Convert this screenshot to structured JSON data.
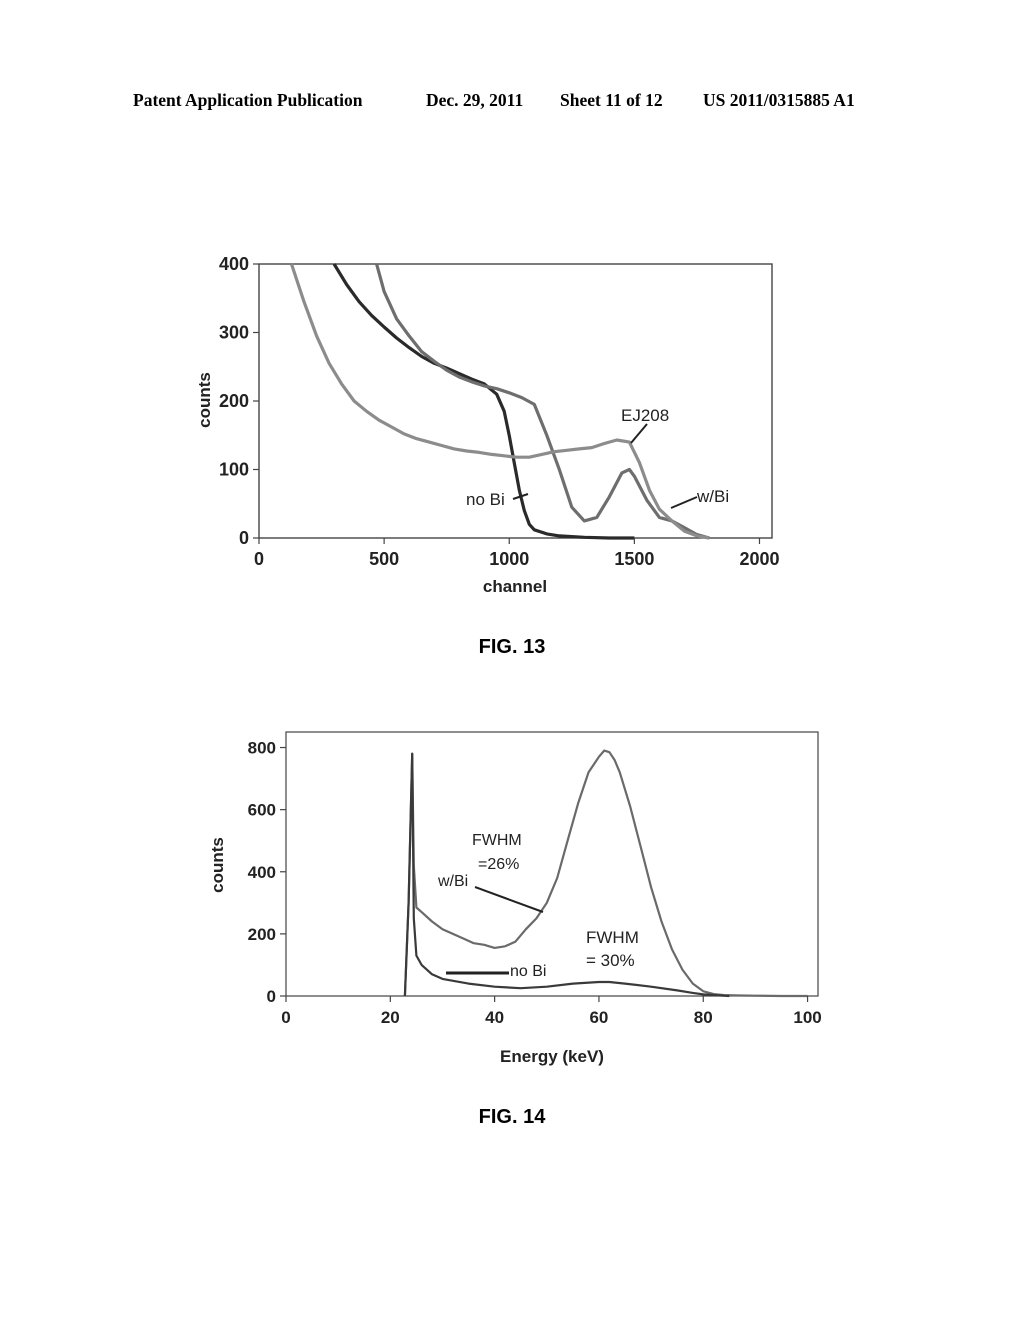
{
  "header": {
    "publication": "Patent Application Publication",
    "date": "Dec. 29, 2011",
    "sheet": "Sheet 11 of 12",
    "number": "US 2011/0315885 A1"
  },
  "figures": {
    "fig13_caption": "FIG. 13",
    "fig14_caption": "FIG. 14"
  },
  "chart_data": [
    {
      "type": "line",
      "title": "",
      "xlabel": "channel",
      "ylabel": "counts",
      "xlim": [
        0,
        2050
      ],
      "ylim": [
        0,
        400
      ],
      "xticks": [
        0,
        500,
        1000,
        1500,
        2000
      ],
      "yticks": [
        0,
        100,
        200,
        300,
        400
      ],
      "grid": false,
      "series": [
        {
          "name": "no Bi",
          "color": "#2a2a2a",
          "x": [
            300,
            350,
            400,
            450,
            500,
            550,
            600,
            650,
            700,
            750,
            800,
            850,
            900,
            950,
            980,
            1000,
            1020,
            1040,
            1060,
            1080,
            1100,
            1150,
            1200,
            1300,
            1400,
            1500
          ],
          "y": [
            400,
            370,
            345,
            325,
            308,
            292,
            278,
            265,
            255,
            248,
            240,
            232,
            225,
            210,
            185,
            150,
            110,
            70,
            40,
            20,
            12,
            6,
            3,
            1,
            0,
            0
          ]
        },
        {
          "name": "w/Bi",
          "color": "#6e6e6e",
          "x": [
            470,
            500,
            550,
            600,
            650,
            700,
            750,
            800,
            850,
            900,
            950,
            1000,
            1050,
            1100,
            1150,
            1200,
            1250,
            1300,
            1350,
            1400,
            1450,
            1480,
            1500,
            1550,
            1600,
            1650,
            1700,
            1750,
            1800
          ],
          "y": [
            400,
            360,
            320,
            295,
            272,
            258,
            245,
            235,
            228,
            222,
            218,
            212,
            205,
            195,
            150,
            100,
            45,
            25,
            30,
            60,
            95,
            100,
            90,
            55,
            30,
            25,
            15,
            5,
            0
          ]
        },
        {
          "name": "EJ208",
          "color": "#8c8c8c",
          "x": [
            130,
            180,
            230,
            280,
            330,
            380,
            430,
            480,
            530,
            580,
            630,
            680,
            730,
            780,
            830,
            880,
            930,
            980,
            1030,
            1080,
            1130,
            1180,
            1230,
            1280,
            1330,
            1380,
            1430,
            1480,
            1520,
            1560,
            1600,
            1650,
            1700,
            1750,
            1800
          ],
          "y": [
            400,
            345,
            295,
            255,
            225,
            200,
            185,
            172,
            162,
            152,
            145,
            140,
            135,
            130,
            127,
            125,
            122,
            120,
            118,
            118,
            122,
            126,
            128,
            130,
            132,
            138,
            143,
            140,
            110,
            70,
            42,
            25,
            10,
            3,
            0
          ]
        }
      ],
      "annotations": [
        "EJ208",
        "no Bi",
        "w/Bi"
      ]
    },
    {
      "type": "line",
      "title": "",
      "xlabel": "Energy (keV)",
      "ylabel": "counts",
      "xlim": [
        0,
        102
      ],
      "ylim": [
        0,
        850
      ],
      "xticks": [
        0,
        20,
        40,
        60,
        80,
        100
      ],
      "yticks": [
        0,
        200,
        400,
        600,
        800
      ],
      "grid": false,
      "series": [
        {
          "name": "w/Bi",
          "color": "#6a6a6a",
          "x": [
            22.8,
            23.5,
            24.2,
            24.5,
            25,
            26,
            28,
            30,
            32,
            34,
            36,
            38,
            40,
            42,
            44,
            46,
            48,
            50,
            52,
            54,
            56,
            58,
            60,
            61,
            62,
            63,
            64,
            66,
            68,
            70,
            72,
            74,
            76,
            78,
            80,
            82,
            84,
            86,
            90,
            95,
            100
          ],
          "y": [
            0,
            300,
            780,
            420,
            285,
            270,
            240,
            215,
            200,
            185,
            170,
            165,
            155,
            160,
            175,
            215,
            250,
            300,
            380,
            500,
            620,
            720,
            770,
            790,
            785,
            760,
            720,
            610,
            480,
            350,
            240,
            150,
            85,
            40,
            15,
            6,
            3,
            2,
            1,
            0,
            0
          ]
        },
        {
          "name": "no Bi",
          "color": "#3a3a3a",
          "x": [
            22.8,
            23.5,
            24.2,
            24.5,
            25,
            26,
            28,
            30,
            35,
            40,
            45,
            50,
            55,
            60,
            62,
            65,
            70,
            75,
            78,
            80,
            85
          ],
          "y": [
            0,
            300,
            780,
            250,
            130,
            100,
            70,
            55,
            40,
            30,
            25,
            30,
            40,
            45,
            45,
            40,
            30,
            18,
            10,
            5,
            0
          ]
        }
      ],
      "annotations": [
        "FWHM",
        "=26%",
        "w/Bi",
        "FWHM",
        "= 30%",
        "no Bi"
      ]
    }
  ]
}
